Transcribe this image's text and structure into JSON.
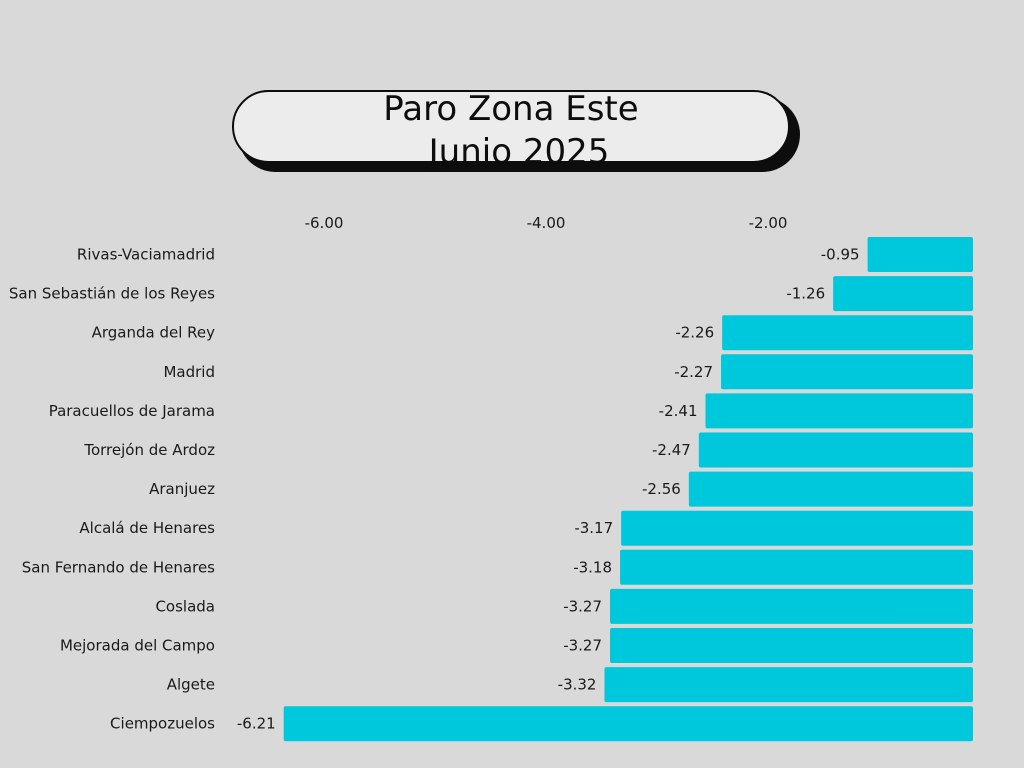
{
  "chart_data": {
    "type": "bar",
    "orientation": "horizontal",
    "title_lines": [
      "Paro Zona Este",
      "Junio 2025"
    ],
    "categories": [
      "Rivas-Vaciamadrid",
      "San Sebastián de los Reyes",
      "Arganda del Rey",
      "Madrid",
      "Paracuellos de Jarama",
      "Torrejón de Ardoz",
      "Aranjuez",
      "Alcalá de Henares",
      "San Fernando de Henares",
      "Coslada",
      "Mejorada del Campo",
      "Algete",
      "Ciempozuelos"
    ],
    "values": [
      -0.95,
      -1.26,
      -2.26,
      -2.27,
      -2.41,
      -2.47,
      -2.56,
      -3.17,
      -3.18,
      -3.27,
      -3.27,
      -3.32,
      -6.21
    ],
    "value_labels": [
      "-0.95",
      "-1.26",
      "-2.26",
      "-2.27",
      "-2.41",
      "-2.47",
      "-2.56",
      "-3.17",
      "-3.18",
      "-3.27",
      "-3.27",
      "-3.32",
      "-6.21"
    ],
    "x_ticks": [
      -6,
      -4,
      -2
    ],
    "x_tick_labels": [
      "-6.00",
      "-4.00",
      "-2.00"
    ],
    "xlim": [
      -6.61,
      0
    ],
    "axis_position": "top",
    "grid": false,
    "bar_color": "#00c8dc",
    "background_color": "#d9d9d9",
    "title_border_color": "#0d0d0d"
  }
}
